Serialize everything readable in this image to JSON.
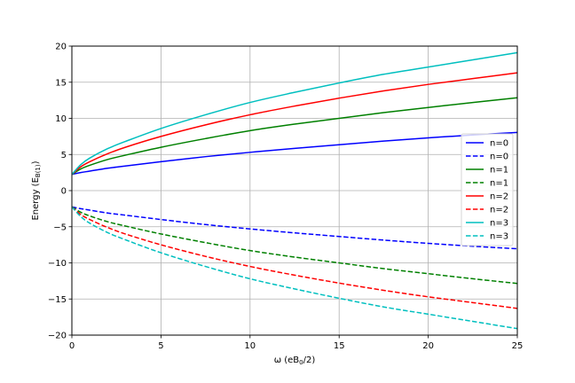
{
  "chart_data": {
    "type": "line",
    "xlabel": "ω (eB₀/2)",
    "ylabel": "Energy (E_{B}(1))",
    "xlim": [
      0,
      25
    ],
    "ylim": [
      -20,
      20
    ],
    "xticks": [
      0,
      5,
      10,
      15,
      20,
      25
    ],
    "yticks": [
      -20,
      -15,
      -10,
      -5,
      0,
      5,
      10,
      15,
      20
    ],
    "grid": true,
    "legend_position": "center-right",
    "series": [
      {
        "name": "n=0",
        "color": "#0000ff",
        "style": "solid",
        "x": [
          0,
          0.5,
          1,
          2,
          3,
          5,
          7.5,
          10,
          12.5,
          15,
          17.5,
          20,
          22.5,
          25
        ],
        "y": [
          2.25,
          2.5,
          2.7,
          3.1,
          3.4,
          4.0,
          4.7,
          5.3,
          5.85,
          6.35,
          6.85,
          7.3,
          7.7,
          8.05
        ]
      },
      {
        "name": "n=0",
        "color": "#0000ff",
        "style": "dashed",
        "x": [
          0,
          0.5,
          1,
          2,
          3,
          5,
          7.5,
          10,
          12.5,
          15,
          17.5,
          20,
          22.5,
          25
        ],
        "y": [
          -2.25,
          -2.5,
          -2.7,
          -3.1,
          -3.4,
          -4.0,
          -4.7,
          -5.3,
          -5.85,
          -6.35,
          -6.85,
          -7.3,
          -7.7,
          -8.05
        ]
      },
      {
        "name": "n=1",
        "color": "#008000",
        "style": "solid",
        "x": [
          0,
          0.5,
          1,
          2,
          3,
          5,
          7.5,
          10,
          12.5,
          15,
          17.5,
          20,
          22.5,
          25
        ],
        "y": [
          2.25,
          3.0,
          3.5,
          4.3,
          4.9,
          6.0,
          7.2,
          8.3,
          9.2,
          10.0,
          10.8,
          11.5,
          12.2,
          12.85
        ]
      },
      {
        "name": "n=1",
        "color": "#008000",
        "style": "dashed",
        "x": [
          0,
          0.5,
          1,
          2,
          3,
          5,
          7.5,
          10,
          12.5,
          15,
          17.5,
          20,
          22.5,
          25
        ],
        "y": [
          -2.25,
          -3.0,
          -3.5,
          -4.3,
          -4.9,
          -6.0,
          -7.2,
          -8.3,
          -9.2,
          -10.0,
          -10.8,
          -11.5,
          -12.2,
          -12.85
        ]
      },
      {
        "name": "n=2",
        "color": "#ff0000",
        "style": "solid",
        "x": [
          0,
          0.5,
          1,
          2,
          3,
          5,
          7.5,
          10,
          12.5,
          15,
          17.5,
          20,
          22.5,
          25
        ],
        "y": [
          2.25,
          3.3,
          4.0,
          5.1,
          6.0,
          7.5,
          9.1,
          10.5,
          11.7,
          12.8,
          13.8,
          14.7,
          15.5,
          16.3
        ]
      },
      {
        "name": "n=2",
        "color": "#ff0000",
        "style": "dashed",
        "x": [
          0,
          0.5,
          1,
          2,
          3,
          5,
          7.5,
          10,
          12.5,
          15,
          17.5,
          20,
          22.5,
          25
        ],
        "y": [
          -2.25,
          -3.3,
          -4.0,
          -5.1,
          -6.0,
          -7.5,
          -9.1,
          -10.5,
          -11.7,
          -12.8,
          -13.8,
          -14.7,
          -15.5,
          -16.3
        ]
      },
      {
        "name": "n=3",
        "color": "#00bfbf",
        "style": "solid",
        "x": [
          0,
          0.5,
          1,
          2,
          3,
          5,
          7.5,
          10,
          12.5,
          15,
          17.5,
          20,
          22.5,
          25
        ],
        "y": [
          2.25,
          3.6,
          4.5,
          5.8,
          6.8,
          8.6,
          10.5,
          12.2,
          13.6,
          14.9,
          16.1,
          17.1,
          18.1,
          19.1
        ]
      },
      {
        "name": "n=3",
        "color": "#00bfbf",
        "style": "dashed",
        "x": [
          0,
          0.5,
          1,
          2,
          3,
          5,
          7.5,
          10,
          12.5,
          15,
          17.5,
          20,
          22.5,
          25
        ],
        "y": [
          -2.25,
          -3.6,
          -4.5,
          -5.8,
          -6.8,
          -8.6,
          -10.5,
          -12.2,
          -13.6,
          -14.9,
          -16.1,
          -17.1,
          -18.1,
          -19.1
        ]
      }
    ]
  }
}
